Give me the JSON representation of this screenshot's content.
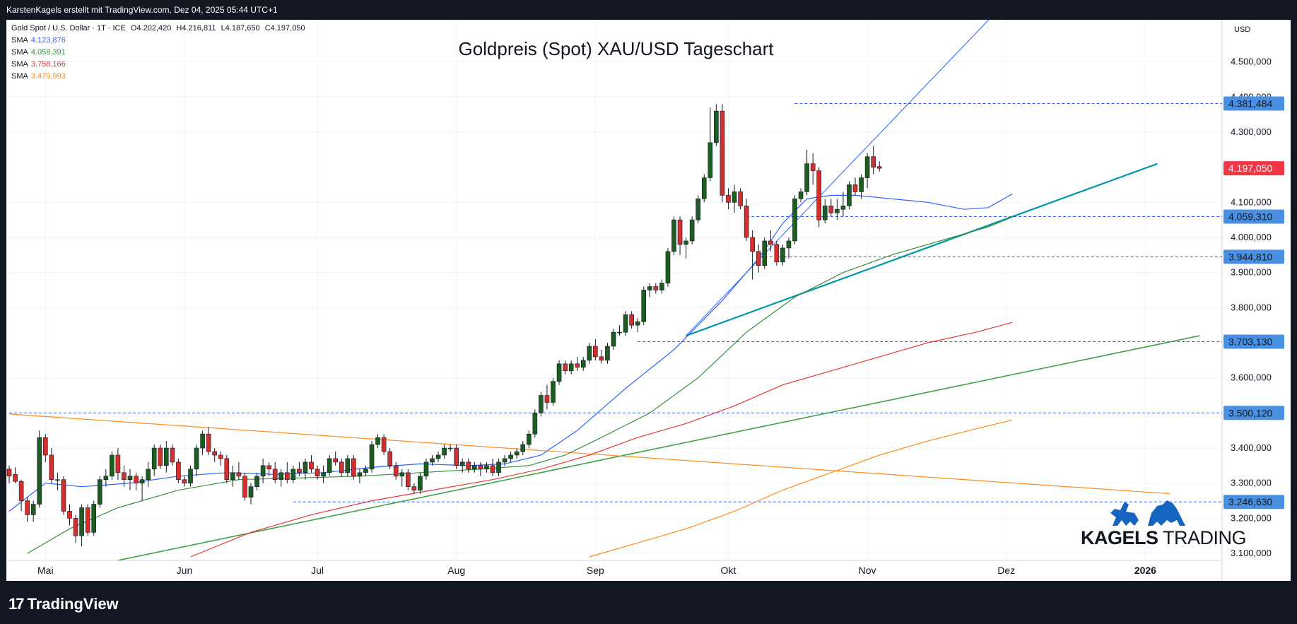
{
  "header": {
    "attribution": "KarstenKagels erstellt mit TradingView.com, Dez 04, 2025 05:44 UTC+1"
  },
  "legend": {
    "symbol": "Gold Spot / U.S. Dollar · 1T · ICE",
    "ohlc": {
      "o": "O4.202,420",
      "h": "H4.216,811",
      "l": "L4.187,650",
      "c": "C4.197,050"
    },
    "sma": [
      {
        "label": "SMA",
        "value": "4.123,876",
        "color": "#2962ff"
      },
      {
        "label": "SMA",
        "value": "4.058,391",
        "color": "#388e3c"
      },
      {
        "label": "SMA",
        "value": "3.758,166",
        "color": "#e53935"
      },
      {
        "label": "SMA",
        "value": "3.479,993",
        "color": "#ff8a1a"
      }
    ]
  },
  "watermark": {
    "brand_bold": "KAGELS",
    "brand_light": "TRADING"
  },
  "footer": {
    "logo_text": "TradingView",
    "logo_mark": "17"
  },
  "chart_data": {
    "type": "candlestick",
    "title": "Goldpreis (Spot) XAU/USD Tageschart",
    "currency": "USD",
    "ylim": [
      3080,
      4620
    ],
    "price_ticks": [
      {
        "v": 3100,
        "label": "3.100,000"
      },
      {
        "v": 3200,
        "label": "3.200,000"
      },
      {
        "v": 3300,
        "label": "3.300,000"
      },
      {
        "v": 3400,
        "label": "3.400,000"
      },
      {
        "v": 3600,
        "label": "3.600,000"
      },
      {
        "v": 3800,
        "label": "3.800,000"
      },
      {
        "v": 3900,
        "label": "3.900,000"
      },
      {
        "v": 4000,
        "label": "4.000,000"
      },
      {
        "v": 4100,
        "label": "4.100,000"
      },
      {
        "v": 4300,
        "label": "4.300,000"
      },
      {
        "v": 4400,
        "label": "4.400,000"
      },
      {
        "v": 4500,
        "label": "4.500,000"
      }
    ],
    "x_ticks": [
      {
        "i": 6,
        "label": "Mai"
      },
      {
        "i": 29,
        "label": "Jun"
      },
      {
        "i": 51,
        "label": "Jul"
      },
      {
        "i": 74,
        "label": "Aug"
      },
      {
        "i": 97,
        "label": "Sep"
      },
      {
        "i": 119,
        "label": "Okt"
      },
      {
        "i": 142,
        "label": "Nov"
      },
      {
        "i": 165,
        "label": "Dez"
      },
      {
        "i": 188,
        "label": "2026"
      }
    ],
    "levels": [
      {
        "v": 4381.484,
        "label": "4.381,484",
        "i0": 130
      },
      {
        "v": 4059.31,
        "label": "4.059,310",
        "i0": 122
      },
      {
        "v": 3944.81,
        "label": "3.944,810",
        "i0": 125
      },
      {
        "v": 3703.13,
        "label": "3.703,130",
        "i0": 104
      },
      {
        "v": 3500.12,
        "label": "3.500,120",
        "i0": 0
      },
      {
        "v": 3246.63,
        "label": "3.246,630",
        "i0": 47
      }
    ],
    "last_price": {
      "v": 4197.05,
      "label": "4.197,050"
    },
    "trendlines": [
      {
        "name": "",
        "color": "#0097a7",
        "width": 2.2,
        "p1": [
          112,
          3720
        ],
        "p2": [
          190,
          4210
        ]
      },
      {
        "name": "",
        "color": "#2962ff",
        "width": 1,
        "p1": [
          112,
          3720
        ],
        "p2": [
          176,
          4870
        ]
      },
      {
        "name": "",
        "color": "#43a047",
        "width": 1.6,
        "p1": [
          18,
          3080
        ],
        "p2": [
          197,
          3720
        ]
      },
      {
        "name": "",
        "color": "#ff8a1a",
        "width": 1.2,
        "p1": [
          0,
          3497
        ],
        "p2": [
          192,
          3270
        ]
      }
    ],
    "candles": [
      [
        3340,
        3350,
        3300,
        3320
      ],
      [
        3325,
        3345,
        3300,
        3305
      ],
      [
        3305,
        3310,
        3220,
        3250
      ],
      [
        3250,
        3260,
        3190,
        3210
      ],
      [
        3210,
        3250,
        3190,
        3240
      ],
      [
        3240,
        3450,
        3230,
        3430
      ],
      [
        3430,
        3440,
        3360,
        3380
      ],
      [
        3380,
        3400,
        3300,
        3310
      ],
      [
        3310,
        3330,
        3280,
        3310
      ],
      [
        3310,
        3320,
        3210,
        3220
      ],
      [
        3220,
        3240,
        3180,
        3200
      ],
      [
        3200,
        3210,
        3130,
        3150
      ],
      [
        3150,
        3240,
        3120,
        3230
      ],
      [
        3230,
        3240,
        3150,
        3160
      ],
      [
        3160,
        3250,
        3150,
        3240
      ],
      [
        3240,
        3320,
        3230,
        3310
      ],
      [
        3310,
        3340,
        3290,
        3320
      ],
      [
        3320,
        3390,
        3310,
        3380
      ],
      [
        3380,
        3400,
        3310,
        3330
      ],
      [
        3330,
        3350,
        3290,
        3310
      ],
      [
        3310,
        3340,
        3280,
        3320
      ],
      [
        3320,
        3330,
        3280,
        3300
      ],
      [
        3300,
        3320,
        3250,
        3310
      ],
      [
        3310,
        3360,
        3290,
        3340
      ],
      [
        3340,
        3410,
        3320,
        3400
      ],
      [
        3400,
        3410,
        3340,
        3350
      ],
      [
        3350,
        3420,
        3330,
        3400
      ],
      [
        3400,
        3410,
        3350,
        3360
      ],
      [
        3360,
        3370,
        3300,
        3310
      ],
      [
        3310,
        3320,
        3290,
        3300
      ],
      [
        3300,
        3350,
        3290,
        3340
      ],
      [
        3340,
        3410,
        3320,
        3400
      ],
      [
        3400,
        3450,
        3380,
        3440
      ],
      [
        3440,
        3460,
        3380,
        3390
      ],
      [
        3390,
        3400,
        3360,
        3380
      ],
      [
        3380,
        3390,
        3350,
        3370
      ],
      [
        3370,
        3380,
        3300,
        3310
      ],
      [
        3310,
        3350,
        3290,
        3330
      ],
      [
        3330,
        3360,
        3310,
        3320
      ],
      [
        3320,
        3330,
        3250,
        3260
      ],
      [
        3260,
        3300,
        3240,
        3290
      ],
      [
        3290,
        3330,
        3280,
        3320
      ],
      [
        3320,
        3370,
        3300,
        3350
      ],
      [
        3350,
        3360,
        3320,
        3340
      ],
      [
        3340,
        3360,
        3300,
        3310
      ],
      [
        3310,
        3340,
        3290,
        3330
      ],
      [
        3330,
        3360,
        3300,
        3310
      ],
      [
        3310,
        3350,
        3300,
        3340
      ],
      [
        3340,
        3360,
        3320,
        3330
      ],
      [
        3330,
        3370,
        3310,
        3360
      ],
      [
        3360,
        3380,
        3330,
        3340
      ],
      [
        3340,
        3350,
        3310,
        3320
      ],
      [
        3320,
        3350,
        3300,
        3330
      ],
      [
        3330,
        3380,
        3320,
        3370
      ],
      [
        3370,
        3390,
        3350,
        3360
      ],
      [
        3360,
        3370,
        3320,
        3330
      ],
      [
        3330,
        3380,
        3320,
        3370
      ],
      [
        3370,
        3380,
        3310,
        3320
      ],
      [
        3320,
        3340,
        3300,
        3330
      ],
      [
        3330,
        3350,
        3320,
        3340
      ],
      [
        3340,
        3420,
        3330,
        3410
      ],
      [
        3410,
        3440,
        3400,
        3430
      ],
      [
        3430,
        3440,
        3380,
        3390
      ],
      [
        3390,
        3400,
        3340,
        3350
      ],
      [
        3350,
        3360,
        3310,
        3320
      ],
      [
        3320,
        3340,
        3290,
        3330
      ],
      [
        3330,
        3340,
        3280,
        3290
      ],
      [
        3290,
        3300,
        3270,
        3280
      ],
      [
        3280,
        3330,
        3270,
        3320
      ],
      [
        3320,
        3370,
        3310,
        3360
      ],
      [
        3360,
        3380,
        3350,
        3370
      ],
      [
        3370,
        3390,
        3360,
        3380
      ],
      [
        3380,
        3410,
        3370,
        3400
      ],
      [
        3400,
        3410,
        3390,
        3400
      ],
      [
        3400,
        3410,
        3340,
        3350
      ],
      [
        3350,
        3370,
        3330,
        3360
      ],
      [
        3360,
        3370,
        3330,
        3340
      ],
      [
        3340,
        3360,
        3330,
        3350
      ],
      [
        3350,
        3360,
        3320,
        3340
      ],
      [
        3340,
        3360,
        3330,
        3350
      ],
      [
        3350,
        3370,
        3320,
        3330
      ],
      [
        3330,
        3370,
        3320,
        3360
      ],
      [
        3360,
        3380,
        3350,
        3370
      ],
      [
        3370,
        3390,
        3360,
        3380
      ],
      [
        3380,
        3400,
        3370,
        3390
      ],
      [
        3390,
        3420,
        3380,
        3410
      ],
      [
        3410,
        3450,
        3400,
        3440
      ],
      [
        3440,
        3510,
        3430,
        3500
      ],
      [
        3500,
        3560,
        3490,
        3550
      ],
      [
        3550,
        3580,
        3510,
        3530
      ],
      [
        3530,
        3600,
        3520,
        3590
      ],
      [
        3590,
        3650,
        3580,
        3640
      ],
      [
        3640,
        3650,
        3610,
        3620
      ],
      [
        3620,
        3650,
        3610,
        3640
      ],
      [
        3640,
        3660,
        3620,
        3630
      ],
      [
        3630,
        3660,
        3620,
        3650
      ],
      [
        3650,
        3700,
        3640,
        3690
      ],
      [
        3690,
        3710,
        3650,
        3660
      ],
      [
        3660,
        3680,
        3640,
        3650
      ],
      [
        3650,
        3700,
        3640,
        3690
      ],
      [
        3690,
        3740,
        3680,
        3730
      ],
      [
        3730,
        3750,
        3720,
        3730
      ],
      [
        3730,
        3790,
        3720,
        3780
      ],
      [
        3780,
        3790,
        3740,
        3750
      ],
      [
        3750,
        3770,
        3730,
        3760
      ],
      [
        3760,
        3860,
        3750,
        3850
      ],
      [
        3850,
        3870,
        3830,
        3860
      ],
      [
        3860,
        3870,
        3840,
        3850
      ],
      [
        3850,
        3880,
        3840,
        3870
      ],
      [
        3870,
        3970,
        3860,
        3960
      ],
      [
        3960,
        4060,
        3950,
        4050
      ],
      [
        4050,
        4060,
        3950,
        3980
      ],
      [
        3980,
        4000,
        3940,
        3990
      ],
      [
        3990,
        4060,
        3980,
        4050
      ],
      [
        4050,
        4120,
        4040,
        4110
      ],
      [
        4110,
        4180,
        4100,
        4170
      ],
      [
        4170,
        4370,
        4160,
        4270
      ],
      [
        4270,
        4380,
        4260,
        4360
      ],
      [
        4360,
        4380,
        4100,
        4120
      ],
      [
        4120,
        4140,
        4080,
        4100
      ],
      [
        4100,
        4150,
        4070,
        4130
      ],
      [
        4130,
        4140,
        4080,
        4090
      ],
      [
        4090,
        4110,
        3990,
        4000
      ],
      [
        4000,
        4020,
        3880,
        3960
      ],
      [
        3960,
        3980,
        3900,
        3920
      ],
      [
        3920,
        4000,
        3910,
        3990
      ],
      [
        3990,
        4020,
        3960,
        3980
      ],
      [
        3980,
        3990,
        3920,
        3930
      ],
      [
        3930,
        3980,
        3920,
        3970
      ],
      [
        3970,
        4000,
        3940,
        3990
      ],
      [
        3990,
        4120,
        3980,
        4110
      ],
      [
        4110,
        4140,
        4100,
        4130
      ],
      [
        4130,
        4250,
        4120,
        4210
      ],
      [
        4210,
        4240,
        4150,
        4190
      ],
      [
        4190,
        4200,
        4030,
        4050
      ],
      [
        4050,
        4110,
        4040,
        4090
      ],
      [
        4090,
        4110,
        4060,
        4070
      ],
      [
        4070,
        4110,
        4050,
        4080
      ],
      [
        4080,
        4130,
        4060,
        4090
      ],
      [
        4090,
        4160,
        4080,
        4150
      ],
      [
        4150,
        4170,
        4120,
        4130
      ],
      [
        4130,
        4180,
        4110,
        4170
      ],
      [
        4170,
        4240,
        4140,
        4230
      ],
      [
        4230,
        4260,
        4180,
        4200
      ],
      [
        4202,
        4217,
        4188,
        4197
      ]
    ],
    "sma_series": [
      {
        "name": "SMA",
        "value": "4.123,876",
        "color": "#2962ff",
        "points": [
          [
            0,
            3220
          ],
          [
            6,
            3300
          ],
          [
            12,
            3290
          ],
          [
            20,
            3300
          ],
          [
            28,
            3320
          ],
          [
            36,
            3330
          ],
          [
            44,
            3325
          ],
          [
            52,
            3330
          ],
          [
            60,
            3345
          ],
          [
            68,
            3355
          ],
          [
            76,
            3350
          ],
          [
            82,
            3355
          ],
          [
            88,
            3380
          ],
          [
            94,
            3450
          ],
          [
            102,
            3570
          ],
          [
            110,
            3680
          ],
          [
            118,
            3820
          ],
          [
            124,
            3940
          ],
          [
            128,
            4040
          ],
          [
            132,
            4110
          ],
          [
            136,
            4120
          ],
          [
            140,
            4120
          ],
          [
            146,
            4110
          ],
          [
            152,
            4100
          ],
          [
            158,
            4080
          ],
          [
            162,
            4085
          ],
          [
            166,
            4124
          ]
        ]
      },
      {
        "name": "SMA",
        "value": "4.058,391",
        "color": "#388e3c",
        "points": [
          [
            3,
            3100
          ],
          [
            10,
            3170
          ],
          [
            18,
            3230
          ],
          [
            28,
            3280
          ],
          [
            38,
            3310
          ],
          [
            48,
            3315
          ],
          [
            58,
            3320
          ],
          [
            68,
            3330
          ],
          [
            78,
            3340
          ],
          [
            86,
            3350
          ],
          [
            92,
            3380
          ],
          [
            98,
            3430
          ],
          [
            106,
            3500
          ],
          [
            114,
            3600
          ],
          [
            122,
            3730
          ],
          [
            130,
            3830
          ],
          [
            138,
            3900
          ],
          [
            146,
            3950
          ],
          [
            154,
            3990
          ],
          [
            162,
            4030
          ],
          [
            166,
            4058
          ]
        ]
      },
      {
        "name": "SMA",
        "value": "3.758,166",
        "color": "#e53935",
        "points": [
          [
            30,
            3090
          ],
          [
            40,
            3160
          ],
          [
            50,
            3210
          ],
          [
            60,
            3250
          ],
          [
            70,
            3280
          ],
          [
            80,
            3310
          ],
          [
            88,
            3340
          ],
          [
            96,
            3380
          ],
          [
            104,
            3430
          ],
          [
            112,
            3470
          ],
          [
            120,
            3520
          ],
          [
            128,
            3580
          ],
          [
            136,
            3620
          ],
          [
            144,
            3660
          ],
          [
            152,
            3700
          ],
          [
            160,
            3730
          ],
          [
            166,
            3758
          ]
        ]
      },
      {
        "name": "SMA",
        "value": "3.479,993",
        "color": "#ff8a1a",
        "points": [
          [
            96,
            3090
          ],
          [
            104,
            3130
          ],
          [
            112,
            3170
          ],
          [
            120,
            3220
          ],
          [
            128,
            3280
          ],
          [
            136,
            3330
          ],
          [
            144,
            3380
          ],
          [
            152,
            3420
          ],
          [
            160,
            3455
          ],
          [
            166,
            3480
          ]
        ]
      }
    ]
  }
}
